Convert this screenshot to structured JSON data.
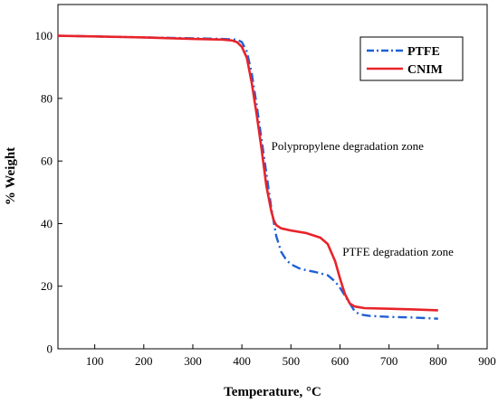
{
  "chart_data": {
    "type": "line",
    "xlabel": "Temperature, °C",
    "ylabel": "% Weight",
    "xlim": [
      25,
      900
    ],
    "ylim": [
      0,
      110
    ],
    "x_ticks": [
      100,
      200,
      300,
      400,
      500,
      600,
      700,
      800,
      900
    ],
    "y_ticks": [
      0,
      20,
      40,
      60,
      80,
      100
    ],
    "grid": false,
    "legend_position": "top-right",
    "series": [
      {
        "name": "PTFE",
        "color": "#1f5fd6",
        "style": "dash-dot",
        "x": [
          25,
          100,
          200,
          300,
          360,
          390,
          400,
          410,
          420,
          430,
          440,
          450,
          460,
          470,
          480,
          490,
          500,
          520,
          550,
          575,
          590,
          600,
          610,
          620,
          630,
          640,
          660,
          700,
          750,
          800
        ],
        "y": [
          100,
          99.8,
          99.5,
          99.2,
          99.0,
          98.8,
          98.0,
          95.0,
          88.0,
          78.0,
          67.0,
          56.0,
          45.0,
          36.0,
          31.0,
          28.5,
          27.0,
          25.5,
          24.5,
          23.5,
          21.5,
          19.5,
          17.0,
          14.5,
          12.0,
          11.0,
          10.5,
          10.2,
          10.0,
          9.6
        ]
      },
      {
        "name": "CNIM",
        "color": "#e8232a",
        "style": "solid",
        "x": [
          25,
          100,
          200,
          300,
          360,
          380,
          390,
          400,
          410,
          420,
          430,
          440,
          450,
          460,
          465,
          470,
          480,
          500,
          530,
          560,
          575,
          590,
          600,
          610,
          620,
          630,
          650,
          700,
          750,
          800
        ],
        "y": [
          100,
          99.8,
          99.5,
          99.0,
          98.8,
          98.5,
          98.0,
          96.5,
          93.0,
          85.0,
          75.0,
          64.0,
          52.0,
          44.0,
          41.0,
          39.5,
          38.5,
          37.8,
          37.0,
          35.5,
          33.5,
          28.0,
          22.5,
          17.5,
          14.5,
          13.5,
          13.0,
          12.8,
          12.6,
          12.3
        ]
      }
    ],
    "annotations": [
      {
        "text": "Polypropylene degradation zone",
        "x": 460,
        "y": 63.5
      },
      {
        "text": "PTFE degradation zone",
        "x": 605,
        "y": 29.8
      }
    ]
  }
}
